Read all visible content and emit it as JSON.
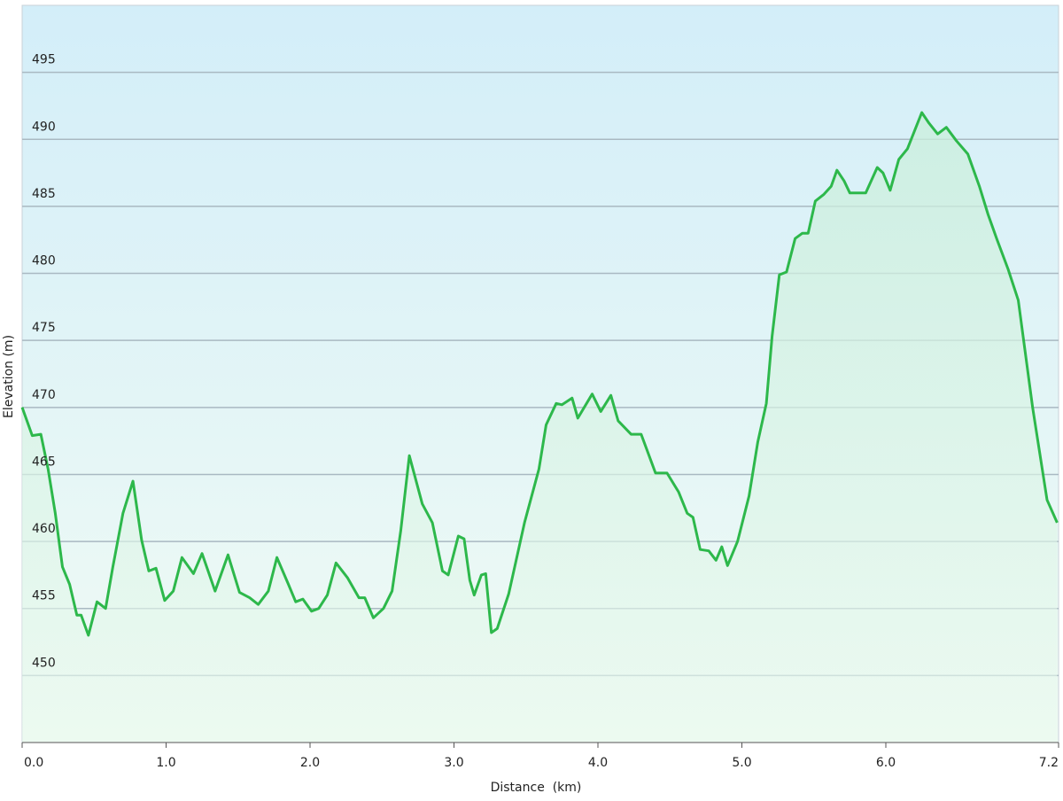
{
  "chart_data": {
    "type": "line",
    "x_label": "Distance  (km)",
    "y_label": "Elevation (m)",
    "color": "#2db84b",
    "grid": true,
    "xlim": [
      0,
      7.2
    ],
    "ylim": [
      445,
      500
    ],
    "xticks": [
      {
        "value": 0,
        "label": "0.0"
      },
      {
        "value": 1,
        "label": "1.0"
      },
      {
        "value": 2,
        "label": "2.0"
      },
      {
        "value": 3,
        "label": "3.0"
      },
      {
        "value": 4,
        "label": "4.0"
      },
      {
        "value": 5,
        "label": "5.0"
      },
      {
        "value": 6,
        "label": "6.0"
      },
      {
        "value": 7.2,
        "label": "7.2"
      }
    ],
    "yticks": [
      450,
      455,
      460,
      465,
      470,
      475,
      480,
      485,
      490,
      495
    ],
    "x": [
      0,
      0.07,
      0.13,
      0.18,
      0.23,
      0.28,
      0.33,
      0.38,
      0.41,
      0.46,
      0.52,
      0.58,
      0.63,
      0.7,
      0.77,
      0.83,
      0.88,
      0.93,
      0.99,
      1.05,
      1.11,
      1.19,
      1.25,
      1.34,
      1.43,
      1.51,
      1.58,
      1.64,
      1.71,
      1.77,
      1.85,
      1.9,
      1.95,
      2.01,
      2.06,
      2.12,
      2.18,
      2.26,
      2.34,
      2.38,
      2.44,
      2.51,
      2.57,
      2.63,
      2.69,
      2.73,
      2.78,
      2.85,
      2.92,
      2.96,
      3.03,
      3.07,
      3.11,
      3.14,
      3.19,
      3.22,
      3.26,
      3.3,
      3.38,
      3.49,
      3.59,
      3.64,
      3.71,
      3.75,
      3.82,
      3.86,
      3.96,
      4.02,
      4.09,
      4.14,
      4.23,
      4.3,
      4.4,
      4.48,
      4.56,
      4.62,
      4.66,
      4.71,
      4.77,
      4.82,
      4.86,
      4.9,
      4.97,
      5.05,
      5.11,
      5.17,
      5.21,
      5.26,
      5.31,
      5.37,
      5.42,
      5.46,
      5.51,
      5.57,
      5.62,
      5.66,
      5.71,
      5.75,
      5.86,
      5.94,
      5.98,
      6.03,
      6.09,
      6.15,
      6.25,
      6.3,
      6.36,
      6.42,
      6.49,
      6.57,
      6.65,
      6.71,
      6.77,
      6.85,
      6.92,
      7.02,
      7.12,
      7.19
    ],
    "values": [
      470.0,
      467.9,
      468.0,
      465.4,
      462.1,
      458.1,
      456.8,
      454.5,
      454.5,
      453.0,
      455.5,
      455.0,
      458.1,
      462.1,
      464.5,
      460.1,
      457.8,
      458.0,
      455.6,
      456.3,
      458.8,
      457.6,
      459.1,
      456.3,
      459.0,
      456.2,
      455.8,
      455.3,
      456.3,
      458.8,
      456.8,
      455.5,
      455.7,
      454.8,
      455.0,
      456.0,
      458.4,
      457.3,
      455.8,
      455.8,
      454.3,
      455.0,
      456.3,
      460.8,
      466.4,
      464.8,
      462.8,
      461.4,
      457.8,
      457.5,
      460.4,
      460.2,
      457.1,
      456.0,
      457.5,
      457.6,
      453.2,
      453.5,
      456.1,
      461.4,
      465.4,
      468.7,
      470.3,
      470.2,
      470.7,
      469.2,
      471.0,
      469.7,
      470.9,
      469.0,
      468.0,
      468.0,
      465.1,
      465.1,
      463.7,
      462.1,
      461.8,
      459.4,
      459.3,
      458.6,
      459.6,
      458.2,
      460.0,
      463.4,
      467.4,
      470.3,
      475.3,
      479.9,
      480.1,
      482.6,
      483.0,
      483.0,
      485.4,
      485.9,
      486.5,
      487.7,
      486.9,
      486.0,
      486.0,
      487.9,
      487.5,
      486.2,
      488.5,
      489.3,
      492.0,
      491.2,
      490.4,
      490.9,
      489.9,
      488.9,
      486.5,
      484.4,
      482.6,
      480.3,
      478.0,
      470.0,
      463.1,
      461.4
    ]
  }
}
